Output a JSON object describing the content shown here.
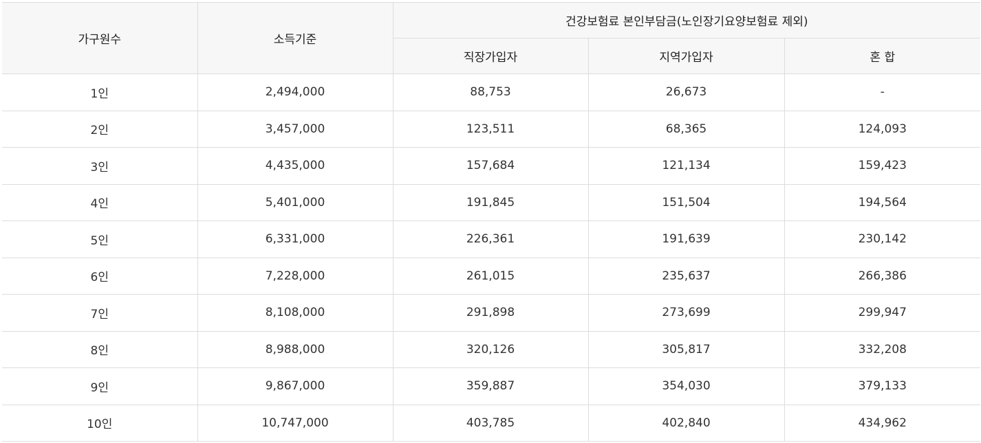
{
  "table": {
    "headers": {
      "household": "가구원수",
      "income": "소득기준",
      "group": "건강보험료 본인부담금(노인장기요양보험료 제외)",
      "employee": "직장가입자",
      "regional": "지역가입자",
      "mixed": "혼 합"
    },
    "rows": [
      [
        "1인",
        "2,494,000",
        "88,753",
        "26,673",
        "-"
      ],
      [
        "2인",
        "3,457,000",
        "123,511",
        "68,365",
        "124,093"
      ],
      [
        "3인",
        "4,435,000",
        "157,684",
        "121,134",
        "159,423"
      ],
      [
        "4인",
        "5,401,000",
        "191,845",
        "151,504",
        "194,564"
      ],
      [
        "5인",
        "6,331,000",
        "226,361",
        "191,639",
        "230,142"
      ],
      [
        "6인",
        "7,228,000",
        "261,015",
        "235,637",
        "266,386"
      ],
      [
        "7인",
        "8,108,000",
        "291,898",
        "273,699",
        "299,947"
      ],
      [
        "8인",
        "8,988,000",
        "320,126",
        "305,817",
        "332,208"
      ],
      [
        "9인",
        "9,867,000",
        "359,887",
        "354,030",
        "379,133"
      ],
      [
        "10인",
        "10,747,000",
        "403,785",
        "402,840",
        "434,962"
      ]
    ]
  }
}
